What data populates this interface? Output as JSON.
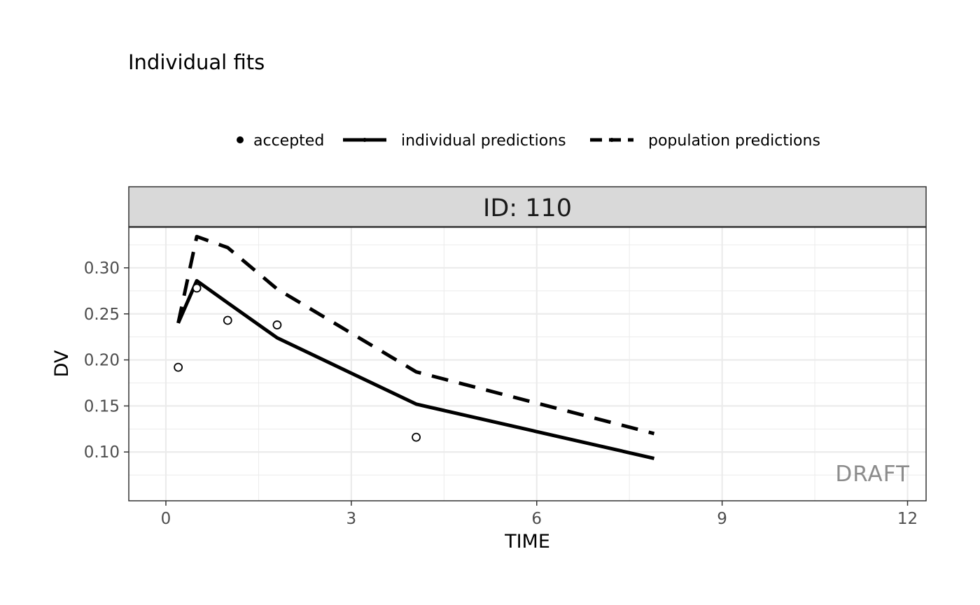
{
  "chart_data": {
    "type": "line",
    "title": "Individual fits",
    "facet_label": "ID: 110",
    "xlabel": "TIME",
    "ylabel": "DV",
    "xlim": [
      -0.6,
      12.3
    ],
    "ylim": [
      0.047,
      0.344
    ],
    "x_ticks": [
      0,
      3,
      6,
      9,
      12
    ],
    "x_tick_labels": [
      "0",
      "3",
      "6",
      "9",
      "12"
    ],
    "y_ticks": [
      0.1,
      0.15,
      0.2,
      0.25,
      0.3
    ],
    "y_tick_labels": [
      "0.10",
      "0.15",
      "0.20",
      "0.25",
      "0.30"
    ],
    "grid": true,
    "legend_position": "top",
    "legend": [
      {
        "label": "accepted",
        "style": "point"
      },
      {
        "label": "individual predictions",
        "style": "solid"
      },
      {
        "label": "population predictions",
        "style": "dashed"
      }
    ],
    "points": [
      {
        "x": 0.2,
        "y": 0.192
      },
      {
        "x": 0.5,
        "y": 0.278
      },
      {
        "x": 1.0,
        "y": 0.243
      },
      {
        "x": 1.8,
        "y": 0.238
      },
      {
        "x": 4.05,
        "y": 0.116
      }
    ],
    "series": [
      {
        "name": "individual predictions",
        "x": [
          0.2,
          0.5,
          1.0,
          1.8,
          4.05,
          7.9
        ],
        "y": [
          0.24,
          0.286,
          0.262,
          0.224,
          0.152,
          0.093
        ]
      },
      {
        "name": "population predictions",
        "x": [
          0.2,
          0.5,
          1.0,
          1.8,
          4.05,
          7.9
        ],
        "y": [
          0.24,
          0.334,
          0.322,
          0.277,
          0.187,
          0.12
        ]
      }
    ],
    "watermark": "DRAFT",
    "colors": {
      "line": "#000000",
      "grid": "#ebebeb",
      "strip": "#d9d9d9",
      "border": "#333333"
    }
  }
}
